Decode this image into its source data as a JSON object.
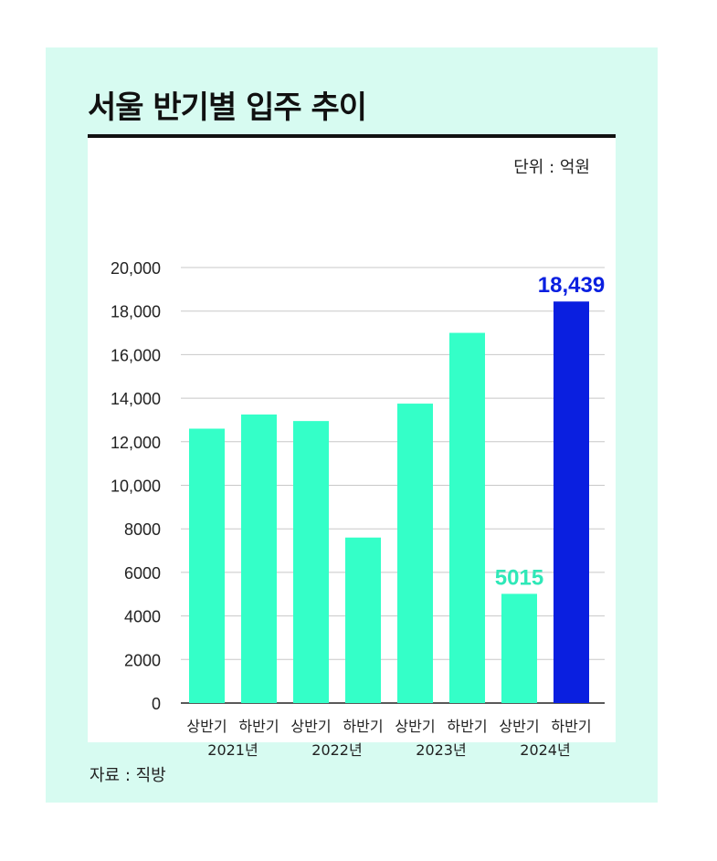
{
  "header": {
    "title": "서울 반기별 입주 추이"
  },
  "unit_label": "단위 : 억원",
  "source_label": "자료 : 직방",
  "colors": {
    "bar": "#34ffc8",
    "highlight": "#0a1fe0",
    "highlight_label": "#0a1fe0",
    "label_5015": "#2fe8b8",
    "panel": "#d7fbf1"
  },
  "chart_data": {
    "type": "bar",
    "title": "서울 반기별 입주 추이",
    "xlabel": "",
    "ylabel": "",
    "ylim": [
      0,
      20000
    ],
    "yticks": [
      0,
      2000,
      4000,
      6000,
      8000,
      10000,
      12000,
      14000,
      16000,
      18000,
      20000
    ],
    "ytick_labels": [
      "0",
      "2000",
      "4000",
      "6000",
      "8000",
      "10,000",
      "12,000",
      "14,000",
      "16,000",
      "18,000",
      "20,000"
    ],
    "categories": [
      "상반기",
      "하반기",
      "상반기",
      "하반기",
      "상반기",
      "하반기",
      "상반기",
      "하반기"
    ],
    "groups": [
      "2021년",
      "2022년",
      "2023년",
      "2024년"
    ],
    "values": [
      12600,
      13250,
      12950,
      7600,
      13750,
      17000,
      5015,
      18439
    ],
    "data_labels": [
      {
        "index": 6,
        "text": "5015",
        "color": "#2fe8b8"
      },
      {
        "index": 7,
        "text": "18,439",
        "color": "#0a1fe0"
      }
    ],
    "highlight_index": 7,
    "grid": true
  }
}
